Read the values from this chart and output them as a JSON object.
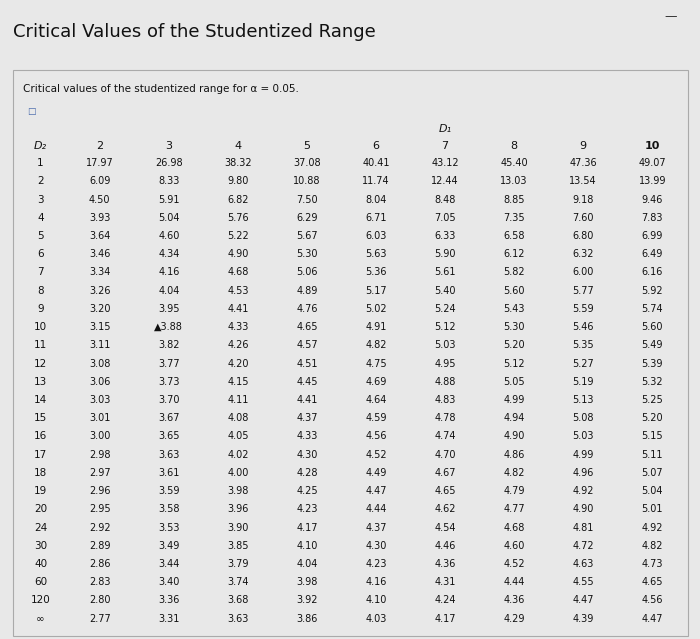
{
  "title": "Critical Values of the Studentized Range",
  "subtitle": "Critical values of the studentized range for α = 0.05.",
  "d1_label": "D₁",
  "d2_label": "D₂",
  "col_headers": [
    "2",
    "3",
    "4",
    "5",
    "6",
    "7",
    "8",
    "9",
    "10"
  ],
  "row_labels": [
    "1",
    "2",
    "3",
    "4",
    "5",
    "6",
    "7",
    "8",
    "9",
    "10",
    "11",
    "12",
    "13",
    "14",
    "15",
    "16",
    "17",
    "18",
    "19",
    "20",
    "24",
    "30",
    "40",
    "60",
    "120",
    "∞"
  ],
  "table_data": [
    [
      17.97,
      26.98,
      38.32,
      37.08,
      40.41,
      43.12,
      45.4,
      47.36,
      49.07
    ],
    [
      6.09,
      8.33,
      9.8,
      10.88,
      11.74,
      12.44,
      13.03,
      13.54,
      13.99
    ],
    [
      4.5,
      5.91,
      6.82,
      7.5,
      8.04,
      8.48,
      8.85,
      9.18,
      9.46
    ],
    [
      3.93,
      5.04,
      5.76,
      6.29,
      6.71,
      7.05,
      7.35,
      7.6,
      7.83
    ],
    [
      3.64,
      4.6,
      5.22,
      5.67,
      6.03,
      6.33,
      6.58,
      6.8,
      6.99
    ],
    [
      3.46,
      4.34,
      4.9,
      5.3,
      5.63,
      5.9,
      6.12,
      6.32,
      6.49
    ],
    [
      3.34,
      4.16,
      4.68,
      5.06,
      5.36,
      5.61,
      5.82,
      6.0,
      6.16
    ],
    [
      3.26,
      4.04,
      4.53,
      4.89,
      5.17,
      5.4,
      5.6,
      5.77,
      5.92
    ],
    [
      3.2,
      3.95,
      4.41,
      4.76,
      5.02,
      5.24,
      5.43,
      5.59,
      5.74
    ],
    [
      3.15,
      3.88,
      4.33,
      4.65,
      4.91,
      5.12,
      5.3,
      5.46,
      5.6
    ],
    [
      3.11,
      3.82,
      4.26,
      4.57,
      4.82,
      5.03,
      5.2,
      5.35,
      5.49
    ],
    [
      3.08,
      3.77,
      4.2,
      4.51,
      4.75,
      4.95,
      5.12,
      5.27,
      5.39
    ],
    [
      3.06,
      3.73,
      4.15,
      4.45,
      4.69,
      4.88,
      5.05,
      5.19,
      5.32
    ],
    [
      3.03,
      3.7,
      4.11,
      4.41,
      4.64,
      4.83,
      4.99,
      5.13,
      5.25
    ],
    [
      3.01,
      3.67,
      4.08,
      4.37,
      4.59,
      4.78,
      4.94,
      5.08,
      5.2
    ],
    [
      3.0,
      3.65,
      4.05,
      4.33,
      4.56,
      4.74,
      4.9,
      5.03,
      5.15
    ],
    [
      2.98,
      3.63,
      4.02,
      4.3,
      4.52,
      4.7,
      4.86,
      4.99,
      5.11
    ],
    [
      2.97,
      3.61,
      4.0,
      4.28,
      4.49,
      4.67,
      4.82,
      4.96,
      5.07
    ],
    [
      2.96,
      3.59,
      3.98,
      4.25,
      4.47,
      4.65,
      4.79,
      4.92,
      5.04
    ],
    [
      2.95,
      3.58,
      3.96,
      4.23,
      4.44,
      4.62,
      4.77,
      4.9,
      5.01
    ],
    [
      2.92,
      3.53,
      3.9,
      4.17,
      4.37,
      4.54,
      4.68,
      4.81,
      4.92
    ],
    [
      2.89,
      3.49,
      3.85,
      4.1,
      4.3,
      4.46,
      4.6,
      4.72,
      4.82
    ],
    [
      2.86,
      3.44,
      3.79,
      4.04,
      4.23,
      4.36,
      4.52,
      4.63,
      4.73
    ],
    [
      2.83,
      3.4,
      3.74,
      3.98,
      4.16,
      4.31,
      4.44,
      4.55,
      4.65
    ],
    [
      2.8,
      3.36,
      3.68,
      3.92,
      4.1,
      4.24,
      4.36,
      4.47,
      4.56
    ],
    [
      2.77,
      3.31,
      3.63,
      3.86,
      4.03,
      4.17,
      4.29,
      4.39,
      4.47
    ]
  ],
  "special_cell_row": 9,
  "special_cell_col": 1,
  "special_marker": "▲",
  "bg_color": "#e8e8e8",
  "table_bg": "#f5f5f5",
  "text_color": "#111111",
  "title_fontsize": 13,
  "subtitle_fontsize": 7.5,
  "header_fontsize": 7.5,
  "data_fontsize": 7.0,
  "row_label_fontsize": 7.5
}
